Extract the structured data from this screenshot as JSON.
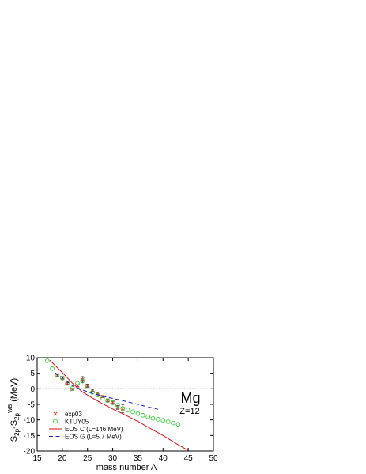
{
  "chart_data": {
    "type": "scatter",
    "title": "",
    "xlabel": "mass number A",
    "ylabel": "S2p - S2p(WB) (MeV)",
    "ylabel_parts": {
      "main": "S",
      "sub1": "2p",
      "dash": "-S",
      "sub2": "2p",
      "sup": "WB",
      "unit": "(MeV)"
    },
    "xlim": [
      15,
      50
    ],
    "ylim": [
      -20,
      10
    ],
    "xticks": [
      15,
      20,
      25,
      30,
      35,
      40,
      45,
      50
    ],
    "yticks": [
      -20,
      -15,
      -10,
      -5,
      0,
      5,
      10
    ],
    "grid": false,
    "reference_line_y": 0,
    "legend_position": "bottom-left",
    "annotation": {
      "element": "Mg",
      "charge": "Z=12"
    },
    "series": [
      {
        "name": "exp03",
        "kind": "marker-x-errorbar",
        "color": "#dd3030",
        "points": [
          {
            "x": 19,
            "y": 4.3,
            "err": 0.5
          },
          {
            "x": 20,
            "y": 3.5,
            "err": 0.4
          },
          {
            "x": 21,
            "y": 1.7,
            "err": 0.3
          },
          {
            "x": 22,
            "y": -0.2,
            "err": 0.3
          },
          {
            "x": 23,
            "y": 1.0,
            "err": 0.3
          },
          {
            "x": 24,
            "y": 3.0,
            "err": 0.9
          },
          {
            "x": 25,
            "y": 1.0,
            "err": 0.5
          },
          {
            "x": 26,
            "y": -0.5,
            "err": 0.3
          },
          {
            "x": 27,
            "y": -1.5,
            "err": 0.3
          },
          {
            "x": 28,
            "y": -2.5,
            "err": 0.3
          },
          {
            "x": 29,
            "y": -3.7,
            "err": 0.4
          },
          {
            "x": 30,
            "y": -4.4,
            "err": 0.5
          },
          {
            "x": 31,
            "y": -6.0,
            "err": 0.6
          },
          {
            "x": 32,
            "y": -6.4,
            "err": 1.3
          }
        ]
      },
      {
        "name": "KTUY05",
        "kind": "marker-circle",
        "color": "#33cc33",
        "points": [
          {
            "x": 17,
            "y": 9.0
          },
          {
            "x": 18,
            "y": 6.5
          },
          {
            "x": 19,
            "y": 4.3
          },
          {
            "x": 20,
            "y": 3.4
          },
          {
            "x": 21,
            "y": 1.7
          },
          {
            "x": 22,
            "y": 0.1
          },
          {
            "x": 23,
            "y": 1.8
          },
          {
            "x": 24,
            "y": 2.5
          },
          {
            "x": 25,
            "y": 0.6
          },
          {
            "x": 26,
            "y": -1.1
          },
          {
            "x": 27,
            "y": -2.0
          },
          {
            "x": 28,
            "y": -3.0
          },
          {
            "x": 29,
            "y": -3.8
          },
          {
            "x": 30,
            "y": -4.5
          },
          {
            "x": 31,
            "y": -5.3
          },
          {
            "x": 32,
            "y": -6.3
          },
          {
            "x": 33,
            "y": -6.8
          },
          {
            "x": 34,
            "y": -7.4
          },
          {
            "x": 35,
            "y": -8.0
          },
          {
            "x": 36,
            "y": -8.5
          },
          {
            "x": 37,
            "y": -9.0
          },
          {
            "x": 38,
            "y": -9.5
          },
          {
            "x": 39,
            "y": -9.8
          },
          {
            "x": 40,
            "y": -10.1
          },
          {
            "x": 41,
            "y": -10.6
          },
          {
            "x": 42,
            "y": -11.0
          },
          {
            "x": 43,
            "y": -11.4
          }
        ]
      },
      {
        "name": "EOS C (L=146 MeV)",
        "kind": "line-solid",
        "color": "#dd1111",
        "points": [
          {
            "x": 17.5,
            "y": 9.2
          },
          {
            "x": 20,
            "y": 5.2
          },
          {
            "x": 22,
            "y": 1.8
          },
          {
            "x": 24,
            "y": -1.0
          },
          {
            "x": 26,
            "y": -3.0
          },
          {
            "x": 28,
            "y": -4.8
          },
          {
            "x": 30,
            "y": -6.5
          },
          {
            "x": 32,
            "y": -8.0
          },
          {
            "x": 35,
            "y": -10.5
          },
          {
            "x": 38,
            "y": -13.2
          },
          {
            "x": 40,
            "y": -15.0
          },
          {
            "x": 43,
            "y": -18.0
          },
          {
            "x": 45,
            "y": -19.8
          }
        ]
      },
      {
        "name": "EOS G (L=5.7 MeV)",
        "kind": "line-dashed",
        "color": "#1a1acc",
        "points": [
          {
            "x": 18.5,
            "y": 5.2
          },
          {
            "x": 20,
            "y": 3.6
          },
          {
            "x": 22,
            "y": 1.0
          },
          {
            "x": 24,
            "y": -0.4
          },
          {
            "x": 26,
            "y": -1.5
          },
          {
            "x": 28,
            "y": -2.4
          },
          {
            "x": 30,
            "y": -3.1
          },
          {
            "x": 32,
            "y": -3.8
          },
          {
            "x": 34,
            "y": -4.6
          },
          {
            "x": 36,
            "y": -5.4
          },
          {
            "x": 38,
            "y": -6.2
          },
          {
            "x": 39,
            "y": -6.6
          }
        ]
      }
    ]
  }
}
